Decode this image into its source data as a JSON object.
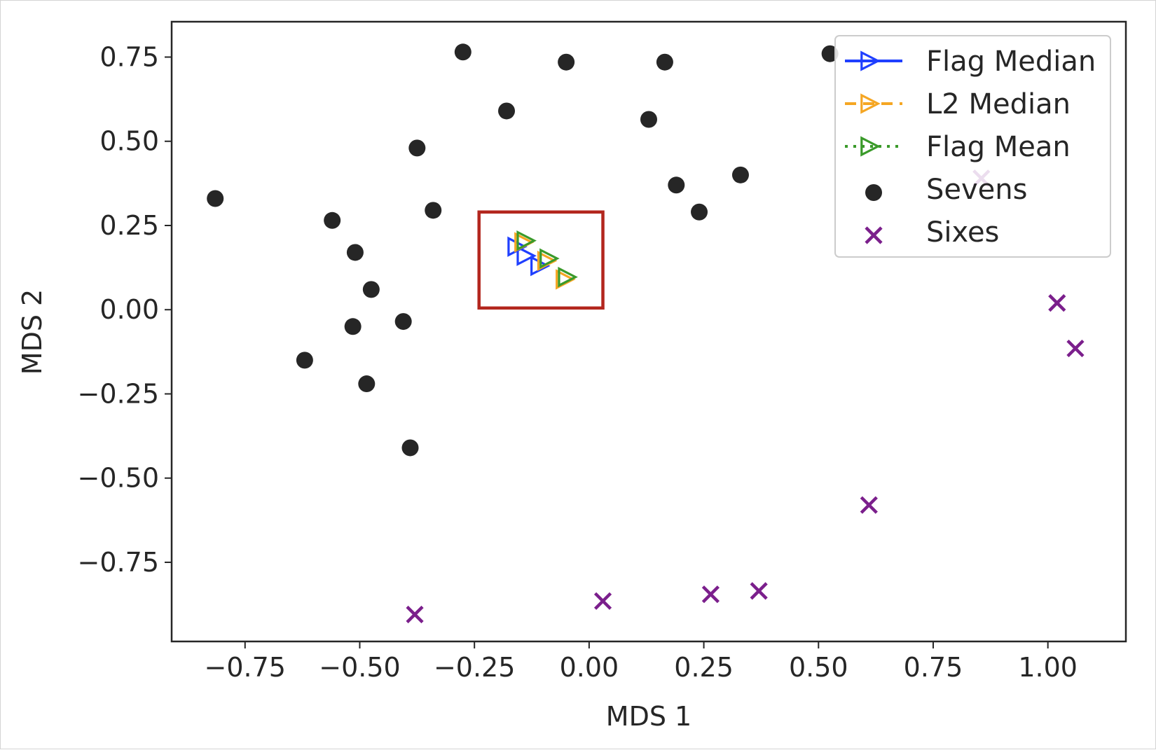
{
  "chart_data": {
    "type": "scatter",
    "title": "",
    "xlabel": "MDS 1",
    "ylabel": "MDS 2",
    "xlim": [
      -0.91,
      1.17
    ],
    "ylim": [
      -0.985,
      0.855
    ],
    "x_ticks": [
      -0.75,
      -0.5,
      -0.25,
      0.0,
      0.25,
      0.5,
      0.75,
      1.0
    ],
    "x_tick_labels": [
      "−0.75",
      "−0.50",
      "−0.25",
      "0.00",
      "0.25",
      "0.50",
      "0.75",
      "1.00"
    ],
    "y_ticks": [
      0.75,
      0.5,
      0.25,
      0.0,
      -0.25,
      -0.5,
      -0.75
    ],
    "y_tick_labels": [
      "0.75",
      "0.50",
      "0.25",
      "0.00",
      "−0.25",
      "−0.50",
      "−0.75"
    ],
    "grid": false,
    "legend_position": "top-right",
    "series": [
      {
        "name": "Flag Median",
        "marker": "triangle-right",
        "line_style": "solid",
        "color": "#1f3fff",
        "points": [
          [
            -0.16,
            0.187
          ],
          [
            -0.14,
            0.16
          ],
          [
            -0.11,
            0.13
          ]
        ]
      },
      {
        "name": "L2 Median",
        "marker": "triangle-right",
        "line_style": "dashed",
        "color": "#f5a623",
        "points": [
          [
            -0.145,
            0.2
          ],
          [
            -0.095,
            0.145
          ],
          [
            -0.055,
            0.09
          ]
        ]
      },
      {
        "name": "Flag Mean",
        "marker": "triangle-right",
        "line_style": "dotted",
        "color": "#3a9a2a",
        "points": [
          [
            -0.14,
            0.205
          ],
          [
            -0.09,
            0.152
          ],
          [
            -0.05,
            0.097
          ]
        ]
      },
      {
        "name": "Sevens",
        "marker": "circle",
        "color": "#262626",
        "points": [
          [
            -0.815,
            0.33
          ],
          [
            -0.56,
            0.265
          ],
          [
            -0.51,
            0.17
          ],
          [
            -0.475,
            0.06
          ],
          [
            -0.515,
            -0.05
          ],
          [
            -0.62,
            -0.15
          ],
          [
            -0.485,
            -0.22
          ],
          [
            -0.405,
            -0.035
          ],
          [
            -0.39,
            -0.41
          ],
          [
            -0.375,
            0.48
          ],
          [
            -0.34,
            0.295
          ],
          [
            -0.275,
            0.765
          ],
          [
            -0.18,
            0.59
          ],
          [
            -0.05,
            0.735
          ],
          [
            0.13,
            0.565
          ],
          [
            0.165,
            0.735
          ],
          [
            0.19,
            0.37
          ],
          [
            0.24,
            0.29
          ],
          [
            0.33,
            0.4
          ],
          [
            0.525,
            0.76
          ]
        ]
      },
      {
        "name": "Sixes",
        "marker": "x",
        "color": "#7b1f8c",
        "points": [
          [
            -0.38,
            -0.905
          ],
          [
            0.03,
            -0.865
          ],
          [
            0.265,
            -0.845
          ],
          [
            0.37,
            -0.835
          ],
          [
            0.61,
            -0.58
          ],
          [
            0.855,
            0.39
          ],
          [
            1.02,
            0.02
          ],
          [
            1.06,
            -0.115
          ]
        ]
      }
    ],
    "annotations": [
      {
        "type": "box",
        "color": "#b3261e",
        "x_range": [
          -0.24,
          0.03
        ],
        "y_range": [
          0.005,
          0.29
        ]
      }
    ]
  }
}
